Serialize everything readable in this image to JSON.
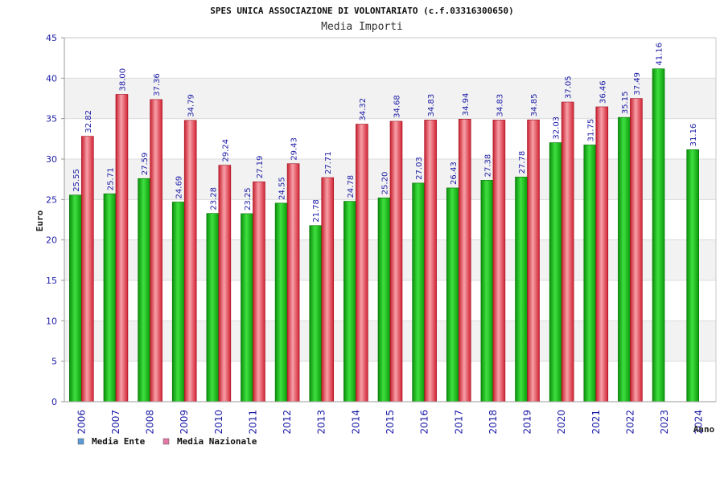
{
  "chart_data": {
    "type": "bar",
    "title": "SPES UNICA ASSOCIAZIONE DI VOLONTARIATO (c.f.03316300650)",
    "subtitle": "Media Importi",
    "xlabel": "Anno",
    "ylabel": "Euro",
    "ylim": [
      0,
      45
    ],
    "yticks": [
      "0",
      "5",
      "10",
      "15",
      "20",
      "25",
      "30",
      "35",
      "40",
      "45"
    ],
    "grid": true,
    "legend_position": "bottom-left",
    "categories": [
      "2006",
      "2007",
      "2008",
      "2009",
      "2010",
      "2011",
      "2012",
      "2013",
      "2014",
      "2015",
      "2016",
      "2017",
      "2018",
      "2019",
      "2020",
      "2021",
      "2022",
      "2023",
      "2024"
    ],
    "series": [
      {
        "name": "Media Ente",
        "legend_color": "#5b9bd5",
        "bar_color": "#1ec81e",
        "values": [
          25.55,
          25.71,
          27.59,
          24.69,
          23.28,
          23.25,
          24.55,
          21.78,
          24.78,
          25.2,
          27.03,
          26.43,
          27.38,
          27.78,
          32.03,
          31.75,
          35.15,
          41.16,
          31.16
        ],
        "labels": [
          "25.55",
          "25.71",
          "27.59",
          "24.69",
          "23.28",
          "23.25",
          "24.55",
          "21.78",
          "24.78",
          "25.20",
          "27.03",
          "26.43",
          "27.38",
          "27.78",
          "32.03",
          "31.75",
          "35.15",
          "41.16",
          "31.16"
        ]
      },
      {
        "name": "Media Nazionale",
        "legend_color": "#e377a6",
        "bar_color": "#e8394b",
        "values": [
          32.82,
          38.0,
          37.36,
          34.79,
          29.24,
          27.19,
          29.43,
          27.71,
          34.32,
          34.68,
          34.83,
          34.94,
          34.83,
          34.85,
          37.05,
          36.46,
          37.49,
          null,
          null
        ],
        "labels": [
          "32.82",
          "38.00",
          "37.36",
          "34.79",
          "29.24",
          "27.19",
          "29.43",
          "27.71",
          "34.32",
          "34.68",
          "34.83",
          "34.94",
          "34.83",
          "34.85",
          "37.05",
          "36.46",
          "37.49",
          "",
          ""
        ]
      }
    ]
  }
}
